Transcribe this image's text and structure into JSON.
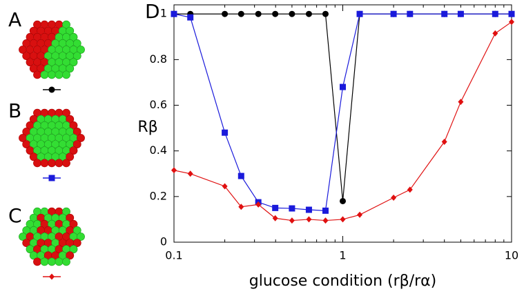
{
  "chart_data": {
    "type": "line",
    "panel_labels": [
      "A",
      "B",
      "C",
      "D"
    ],
    "xlabel": "glucose condition (rβ/rα)",
    "ylabel": "Rβ",
    "x": [
      0.1,
      0.125,
      0.2,
      0.25,
      0.316,
      0.398,
      0.5,
      0.63,
      0.79,
      1,
      1.26,
      2,
      2.5,
      4,
      5,
      8,
      10
    ],
    "series": [
      {
        "color": "#000000",
        "marker": "circle",
        "values": [
          1,
          1,
          1,
          1,
          1,
          1,
          1,
          1,
          1,
          0.18,
          1,
          1,
          1,
          1,
          1,
          1,
          1
        ]
      },
      {
        "color": "#1a1adb",
        "marker": "square",
        "values": [
          1,
          0.985,
          0.48,
          0.29,
          0.175,
          0.15,
          0.148,
          0.142,
          0.138,
          0.68,
          1,
          1,
          1,
          1,
          1,
          1,
          1
        ]
      },
      {
        "color": "#e01010",
        "marker": "diamond",
        "values": [
          0.315,
          0.3,
          0.245,
          0.155,
          0.165,
          0.105,
          0.095,
          0.1,
          0.095,
          0.1,
          0.12,
          0.195,
          0.23,
          0.44,
          0.615,
          0.915,
          0.965
        ]
      }
    ],
    "xscale": "log",
    "xlim": [
      0.1,
      10
    ],
    "xticks": [
      0.1,
      1,
      10
    ],
    "ylim": [
      0,
      1.04
    ],
    "yticks": [
      0,
      0.2,
      0.4,
      0.6,
      0.8,
      1
    ]
  }
}
